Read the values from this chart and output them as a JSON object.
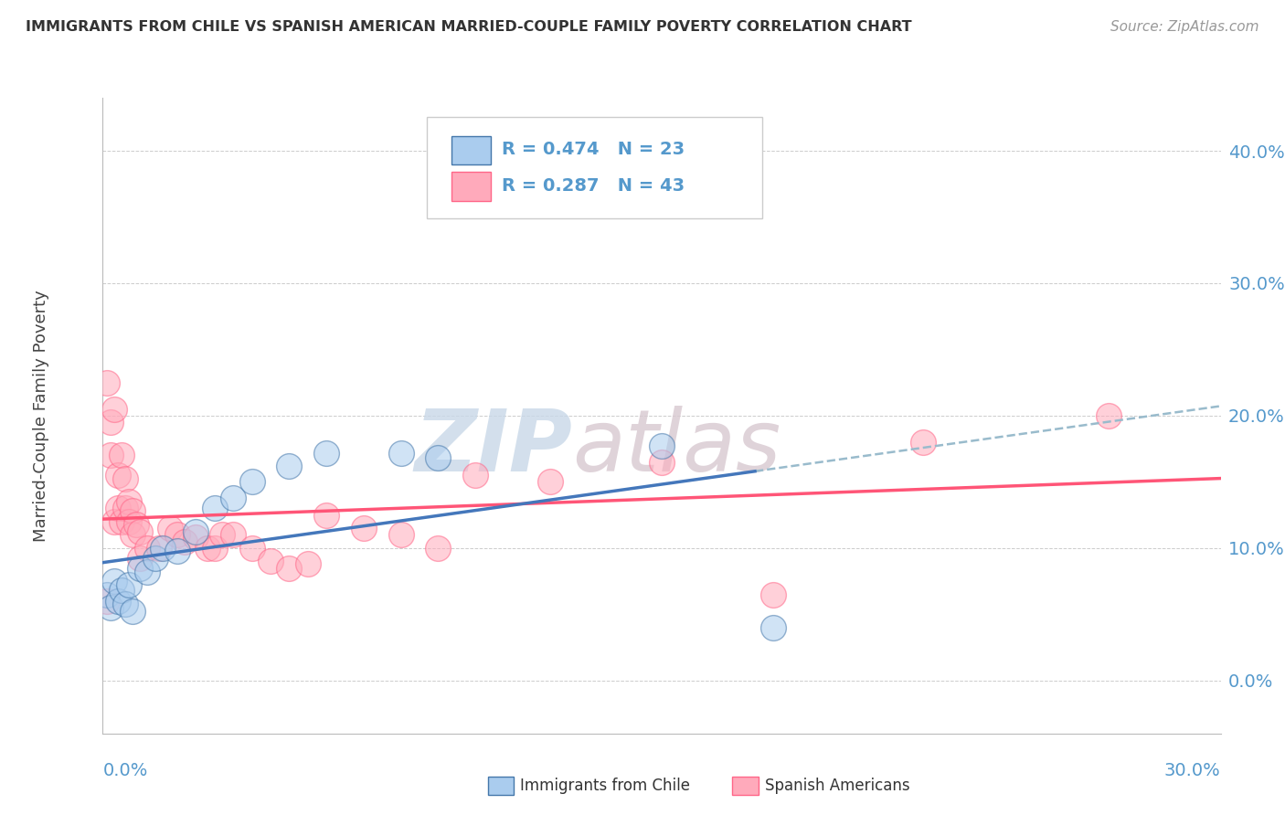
{
  "title": "IMMIGRANTS FROM CHILE VS SPANISH AMERICAN MARRIED-COUPLE FAMILY POVERTY CORRELATION CHART",
  "source": "Source: ZipAtlas.com",
  "ylabel": "Married-Couple Family Poverty",
  "yticks_labels": [
    "0.0%",
    "10.0%",
    "20.0%",
    "30.0%",
    "40.0%"
  ],
  "ytick_vals": [
    0.0,
    0.1,
    0.2,
    0.3,
    0.4
  ],
  "xlim": [
    0.0,
    0.3
  ],
  "ylim": [
    -0.04,
    0.44
  ],
  "legend1_text": "R = 0.474   N = 23",
  "legend2_text": "R = 0.287   N = 43",
  "color_blue_fill": "#AACCEE",
  "color_blue_edge": "#4477AA",
  "color_pink_fill": "#FFAABB",
  "color_pink_edge": "#FF6688",
  "color_blue_line": "#4477BB",
  "color_pink_line": "#FF5577",
  "color_dash": "#99BBCC",
  "color_grid": "#CCCCCC",
  "color_ytick": "#5599CC",
  "color_xtick": "#5599CC",
  "color_title": "#333333",
  "color_source": "#999999",
  "color_ylabel": "#444444",
  "color_watermark_zip": "#DDDDEE",
  "color_watermark_atlas": "#DDDDEE",
  "background": "#FFFFFF",
  "chile_x": [
    0.001,
    0.002,
    0.003,
    0.004,
    0.005,
    0.006,
    0.007,
    0.008,
    0.01,
    0.012,
    0.014,
    0.016,
    0.02,
    0.025,
    0.03,
    0.035,
    0.04,
    0.05,
    0.06,
    0.08,
    0.09,
    0.15,
    0.18
  ],
  "chile_y": [
    0.065,
    0.055,
    0.075,
    0.06,
    0.068,
    0.058,
    0.072,
    0.052,
    0.085,
    0.082,
    0.092,
    0.1,
    0.098,
    0.112,
    0.13,
    0.138,
    0.15,
    0.162,
    0.172,
    0.172,
    0.168,
    0.177,
    0.04
  ],
  "spanish_x": [
    0.001,
    0.001,
    0.002,
    0.002,
    0.003,
    0.003,
    0.004,
    0.004,
    0.005,
    0.005,
    0.006,
    0.006,
    0.007,
    0.007,
    0.008,
    0.008,
    0.009,
    0.01,
    0.01,
    0.012,
    0.015,
    0.018,
    0.02,
    0.022,
    0.025,
    0.028,
    0.03,
    0.032,
    0.035,
    0.04,
    0.045,
    0.05,
    0.055,
    0.06,
    0.07,
    0.08,
    0.09,
    0.1,
    0.12,
    0.15,
    0.18,
    0.22,
    0.27
  ],
  "spanish_y": [
    0.225,
    0.06,
    0.195,
    0.17,
    0.205,
    0.12,
    0.155,
    0.13,
    0.17,
    0.12,
    0.152,
    0.13,
    0.135,
    0.12,
    0.128,
    0.11,
    0.118,
    0.112,
    0.092,
    0.1,
    0.1,
    0.115,
    0.11,
    0.105,
    0.108,
    0.1,
    0.1,
    0.11,
    0.11,
    0.1,
    0.09,
    0.085,
    0.088,
    0.125,
    0.115,
    0.11,
    0.1,
    0.155,
    0.15,
    0.165,
    0.065,
    0.18,
    0.2
  ]
}
